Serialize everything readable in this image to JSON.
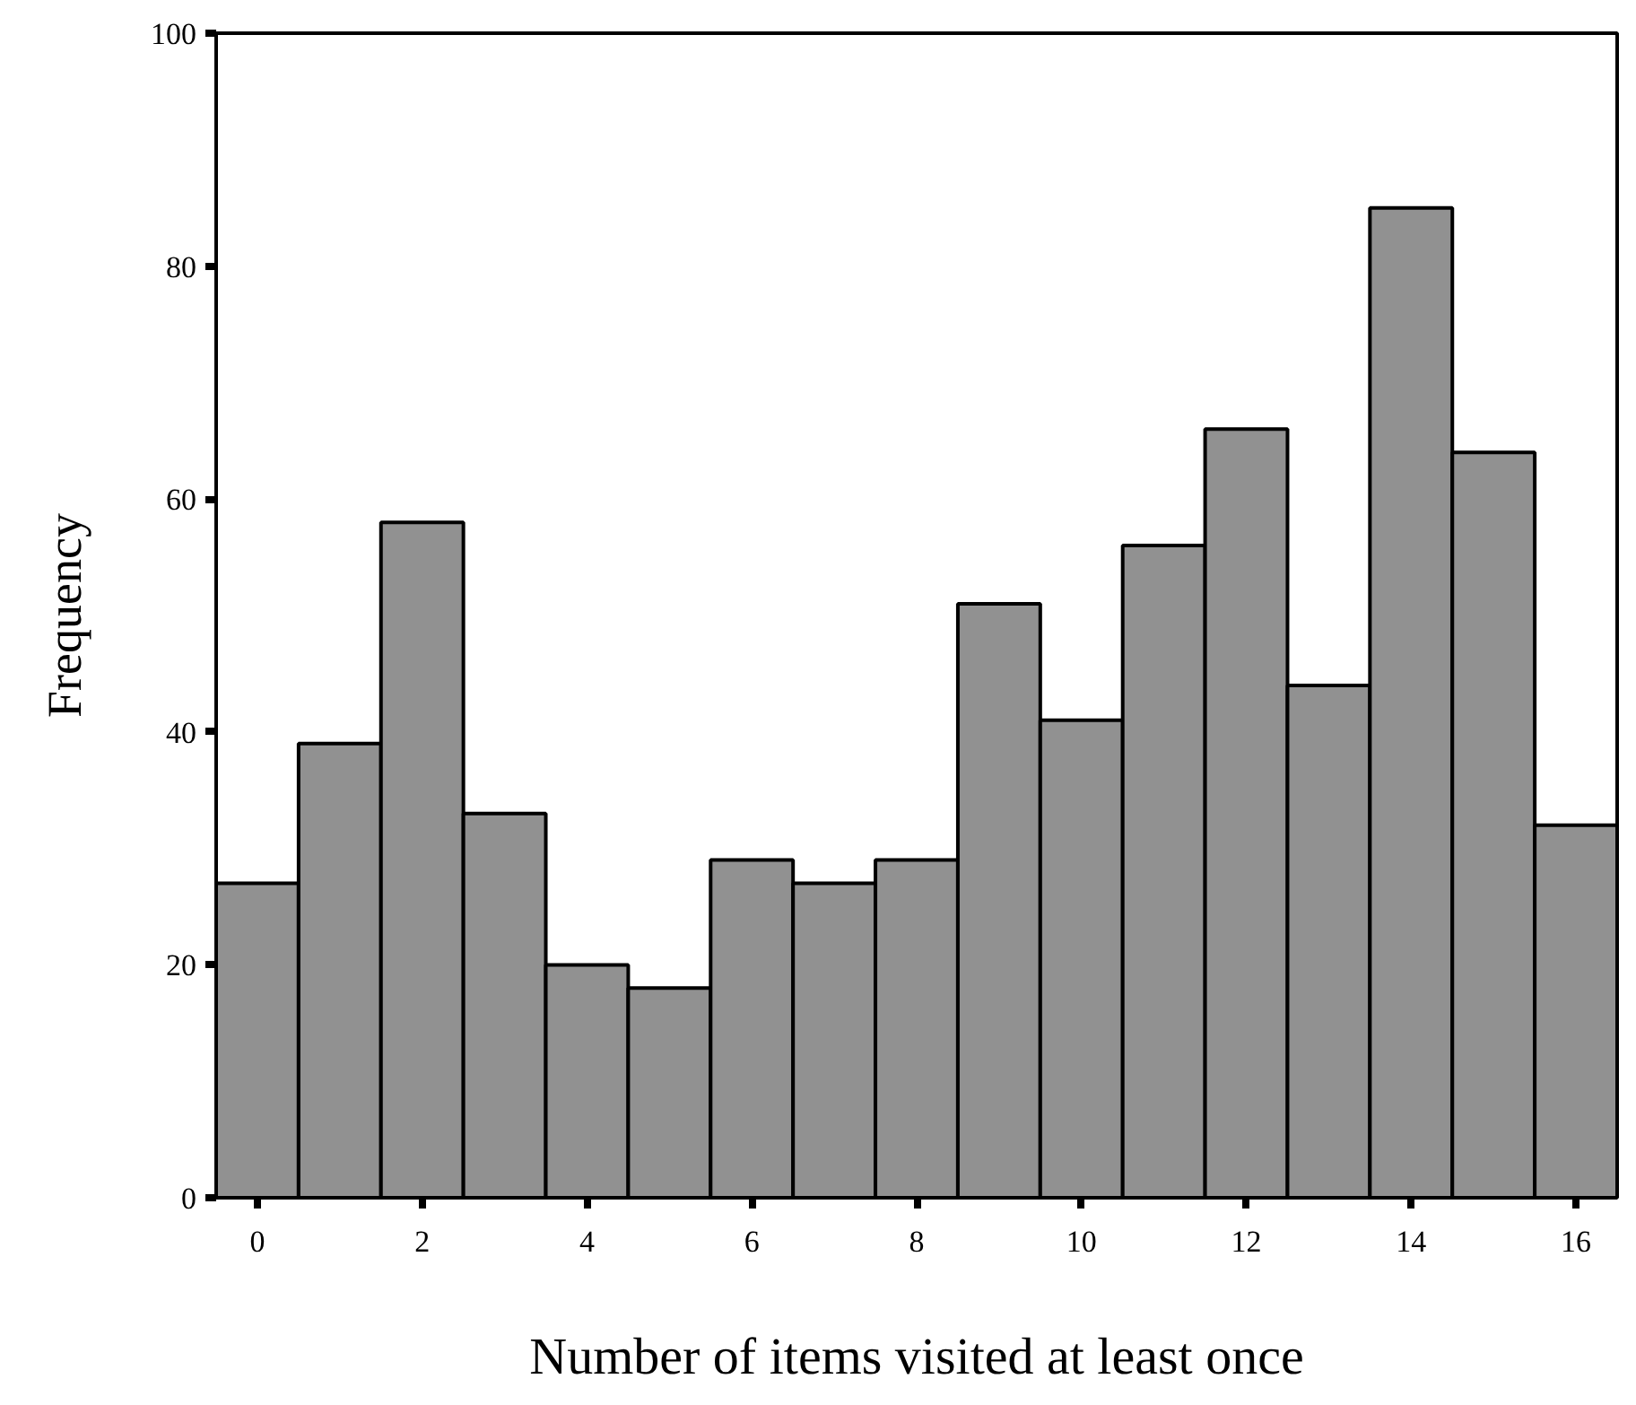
{
  "chart_data": {
    "type": "histogram",
    "xlabel": "Number of items visited at least once",
    "ylabel": "Frequency",
    "bins": [
      -0.5,
      0.5,
      1.5,
      2.5,
      3.5,
      4.5,
      5.5,
      6.5,
      7.5,
      8.5,
      9.5,
      10.5,
      11.5,
      12.5,
      13.5,
      14.5,
      15.5,
      16.5
    ],
    "values": [
      27,
      39,
      58,
      33,
      20,
      18,
      29,
      27,
      29,
      51,
      41,
      56,
      66,
      44,
      85,
      64,
      32
    ],
    "color": "#919191",
    "xlim": [
      -0.5,
      16.5
    ],
    "ylim": [
      0,
      100
    ],
    "xticks": [
      0,
      2,
      4,
      6,
      8,
      10,
      12,
      14,
      16
    ],
    "yticks": [
      0,
      20,
      40,
      60,
      80,
      100
    ],
    "grid": false
  }
}
